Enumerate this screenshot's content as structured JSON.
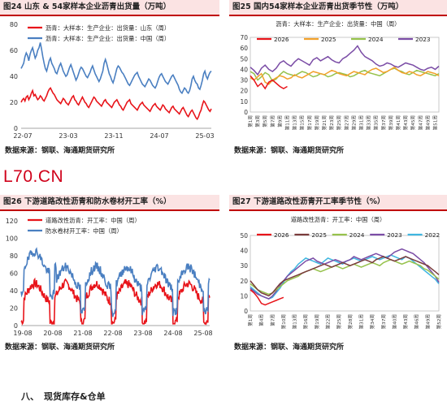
{
  "watermark": "L70.CN",
  "section_heading": {
    "number": "八、",
    "title": "现货库存&仓单"
  },
  "chart_data": [
    {
      "id": "fig24",
      "type": "line",
      "title": "图24  山东 & 54家样本企业沥青出货量（万吨）",
      "source": "数据来源：钢联、海通期货研究所",
      "xlabel": "",
      "ylabel": "",
      "ylim": [
        0,
        80
      ],
      "yticks": [
        0,
        20,
        40,
        60,
        80
      ],
      "xticks": [
        "22-07",
        "23-03",
        "23-11",
        "24-07",
        "25-03"
      ],
      "n_points": 150,
      "legend_position": "top-left",
      "series": [
        {
          "name": "沥青：大样本：生产企业：出货量：山东（周）",
          "color": "#e8141a",
          "values": [
            20,
            22,
            23,
            21,
            24,
            25,
            22,
            24,
            27,
            29,
            25,
            26,
            24,
            22,
            23,
            25,
            24,
            22,
            21,
            23,
            25,
            28,
            30,
            31,
            29,
            27,
            26,
            24,
            22,
            21,
            20,
            19,
            21,
            23,
            22,
            20,
            19,
            18,
            20,
            22,
            24,
            25,
            22,
            21,
            19,
            18,
            20,
            22,
            24,
            22,
            20,
            19,
            17,
            16,
            18,
            20,
            22,
            24,
            23,
            21,
            20,
            19,
            18,
            17,
            19,
            21,
            22,
            20,
            19,
            18,
            17,
            16,
            18,
            20,
            21,
            22,
            20,
            18,
            17,
            15,
            14,
            16,
            18,
            20,
            21,
            22,
            19,
            18,
            17,
            16,
            15,
            14,
            16,
            18,
            19,
            20,
            18,
            17,
            16,
            15,
            14,
            13,
            15,
            17,
            18,
            19,
            17,
            16,
            15,
            14,
            16,
            18,
            17,
            15,
            14,
            13,
            12,
            14,
            16,
            17,
            15,
            14,
            13,
            12,
            11,
            13,
            15,
            16,
            14,
            12,
            10,
            9,
            11,
            13,
            14,
            12,
            10,
            8,
            7,
            9,
            12,
            14,
            18,
            21,
            20,
            18,
            16,
            14,
            13,
            15
          ]
        },
        {
          "name": "沥青：大样本：生产企业：出货量：中国（周）",
          "color": "#4a7fc1",
          "values": [
            46,
            48,
            50,
            55,
            58,
            56,
            52,
            57,
            60,
            62,
            58,
            54,
            56,
            60,
            62,
            66,
            61,
            55,
            50,
            46,
            44,
            48,
            52,
            54,
            50,
            48,
            46,
            43,
            42,
            45,
            48,
            50,
            47,
            44,
            42,
            40,
            41,
            44,
            47,
            49,
            46,
            43,
            40,
            37,
            39,
            42,
            45,
            47,
            46,
            44,
            42,
            40,
            39,
            41,
            43,
            46,
            48,
            45,
            42,
            40,
            38,
            36,
            38,
            41,
            44,
            50,
            53,
            50,
            46,
            42,
            40,
            37,
            35,
            38,
            42,
            46,
            48,
            47,
            45,
            43,
            42,
            40,
            38,
            36,
            34,
            33,
            35,
            37,
            39,
            41,
            42,
            43,
            40,
            38,
            36,
            34,
            33,
            32,
            34,
            36,
            38,
            37,
            35,
            33,
            32,
            31,
            33,
            36,
            39,
            41,
            42,
            40,
            38,
            36,
            35,
            34,
            36,
            38,
            40,
            41,
            39,
            37,
            35,
            33,
            30,
            28,
            27,
            29,
            31,
            30,
            28,
            27,
            29,
            33,
            38,
            40,
            37,
            35,
            34,
            31,
            30,
            33,
            37,
            42,
            44,
            40,
            38,
            41,
            43,
            44
          ]
        }
      ]
    },
    {
      "id": "fig25",
      "type": "line",
      "title": "图25  国内54家样本企业沥青出货季节性（万吨）",
      "source": "数据来源：钢联、海通期货研究所",
      "legend_title": "沥青：大样本：生产企业：出货量：中国（周）",
      "xlabel": "",
      "ylabel": "",
      "ylim": [
        0,
        70
      ],
      "yticks": [
        0,
        10,
        20,
        30,
        40,
        50,
        60,
        70
      ],
      "xticks": [
        "第1周",
        "第3周",
        "第5周",
        "第7周",
        "第9周",
        "第11周",
        "第13周",
        "第15周",
        "第17周",
        "第19周",
        "第21周",
        "第23周",
        "第25周",
        "第27周",
        "第29周",
        "第31周",
        "第33周",
        "第35周",
        "第37周",
        "第39周",
        "第41周",
        "第43周",
        "第45周",
        "第47周",
        "第49周",
        "第51周"
      ],
      "n_weeks": 52,
      "legend_position": "top",
      "series": [
        {
          "name": "2026",
          "color": "#e8141a",
          "values": [
            34,
            30,
            24,
            27,
            22,
            28,
            30,
            27,
            24,
            22,
            24
          ]
        },
        {
          "name": "2025",
          "color": "#f2a12b",
          "values": [
            32,
            30,
            33,
            36,
            28,
            26,
            30,
            32,
            34,
            33,
            31,
            32,
            35,
            33,
            32,
            34,
            36,
            38,
            37,
            36,
            35,
            37,
            39,
            38,
            36,
            35,
            34,
            36,
            38,
            37,
            36,
            35,
            38,
            40,
            41,
            39,
            37,
            38,
            40,
            42,
            39,
            37,
            36,
            38,
            37,
            35,
            34,
            36,
            38,
            37,
            36,
            34
          ]
        },
        {
          "name": "2024",
          "color": "#96c24c",
          "values": [
            38,
            36,
            30,
            33,
            37,
            35,
            29,
            31,
            35,
            38,
            36,
            35,
            34,
            36,
            38,
            37,
            35,
            33,
            34,
            36,
            35,
            33,
            34,
            36,
            37,
            36,
            35,
            33,
            34,
            36,
            38,
            39,
            37,
            36,
            35,
            34,
            36,
            38,
            40,
            41,
            39,
            38,
            36,
            35,
            37,
            39,
            38,
            37,
            36,
            35,
            34,
            36
          ]
        },
        {
          "name": "2023",
          "color": "#7b4da6",
          "values": [
            42,
            39,
            35,
            41,
            44,
            40,
            38,
            41,
            46,
            48,
            45,
            43,
            47,
            50,
            48,
            46,
            44,
            49,
            51,
            48,
            50,
            52,
            49,
            47,
            46,
            50,
            52,
            55,
            58,
            62,
            56,
            52,
            50,
            48,
            45,
            43,
            44,
            46,
            45,
            43,
            42,
            44,
            46,
            45,
            44,
            42,
            40,
            39,
            41,
            42,
            40,
            43
          ]
        }
      ]
    },
    {
      "id": "fig26",
      "type": "line",
      "title": "图26  下游道路改性沥青和防水卷材开工率（%）",
      "source": "数据来源：钢联、海通期货研究所",
      "xlabel": "",
      "ylabel": "",
      "ylim": [
        0,
        120
      ],
      "yticks": [
        0,
        20,
        40,
        60,
        80,
        100,
        120
      ],
      "xticks": [
        "19-08",
        "20-08",
        "21-08",
        "22-08",
        "23-08",
        "24-08",
        "25-08"
      ],
      "n_points": 320,
      "legend_position": "top-left",
      "series": [
        {
          "name": "道路改性沥青：开工率：中国（周）",
          "color": "#e8141a"
        },
        {
          "name": "防水卷材开工率：中国（周）",
          "color": "#4a7fc1"
        }
      ]
    },
    {
      "id": "fig27",
      "type": "line",
      "title": "图27  下游道路改性沥青开工率季节性（%）",
      "source": "数据来源：钢联、海通期货研究所",
      "legend_title": "道路改性沥青：开工率：中国（周）",
      "xlabel": "",
      "ylabel": "",
      "ylim": [
        0,
        50
      ],
      "yticks": [
        0,
        10,
        20,
        30,
        40,
        50
      ],
      "xticks": [
        "第1周",
        "第4周",
        "第7周",
        "第10周",
        "第13周",
        "第16周",
        "第19周",
        "第22周",
        "第25周",
        "第28周",
        "第31周",
        "第34周",
        "第37周",
        "第40周",
        "第43周",
        "第46周",
        "第49周",
        "第52周"
      ],
      "n_weeks": 52,
      "legend_position": "top",
      "series": [
        {
          "name": "2026",
          "color": "#e8141a",
          "values": [
            14,
            12,
            9,
            5,
            4,
            5,
            6,
            7,
            8,
            9
          ]
        },
        {
          "name": "2025",
          "color": "#7a3c3c",
          "values": [
            20,
            17,
            14,
            12,
            11,
            10,
            12,
            15,
            18,
            20,
            21,
            22,
            23,
            24,
            25,
            26,
            27,
            28,
            29,
            30,
            31,
            30,
            29,
            30,
            31,
            32,
            31,
            30,
            31,
            32,
            33,
            34,
            33,
            32,
            34,
            35,
            36,
            35,
            34,
            33,
            34,
            35,
            36,
            35,
            34,
            33,
            32,
            31,
            30,
            28,
            26,
            24
          ]
        },
        {
          "name": "2024",
          "color": "#96c24c",
          "values": [
            18,
            16,
            14,
            13,
            12,
            11,
            12,
            14,
            16,
            18,
            20,
            21,
            22,
            23,
            25,
            26,
            27,
            28,
            27,
            26,
            27,
            28,
            29,
            30,
            29,
            28,
            29,
            30,
            31,
            30,
            29,
            30,
            31,
            32,
            31,
            30,
            32,
            33,
            34,
            33,
            32,
            31,
            32,
            33,
            32,
            31,
            30,
            28,
            27,
            25,
            23,
            21
          ]
        },
        {
          "name": "2023",
          "color": "#7b4da6",
          "values": [
            15,
            13,
            11,
            10,
            9,
            8,
            10,
            13,
            17,
            20,
            23,
            25,
            27,
            29,
            31,
            33,
            34,
            35,
            33,
            32,
            31,
            32,
            33,
            34,
            33,
            32,
            33,
            34,
            36,
            35,
            34,
            35,
            36,
            37,
            38,
            37,
            36,
            35,
            37,
            39,
            40,
            41,
            40,
            39,
            38,
            36,
            34,
            32,
            29,
            26,
            23,
            19
          ]
        },
        {
          "name": "2022",
          "color": "#3fb6e0",
          "values": [
            16,
            14,
            12,
            10,
            9,
            8,
            9,
            12,
            15,
            19,
            23,
            26,
            28,
            31,
            33,
            35,
            34,
            33,
            32,
            31,
            33,
            35,
            34,
            33,
            32,
            31,
            33,
            34,
            35,
            34,
            33,
            34,
            35,
            36,
            35,
            34,
            35,
            36,
            37,
            36,
            35,
            34,
            36,
            35,
            33,
            31,
            29,
            27,
            25,
            23,
            21,
            18
          ]
        }
      ]
    }
  ]
}
